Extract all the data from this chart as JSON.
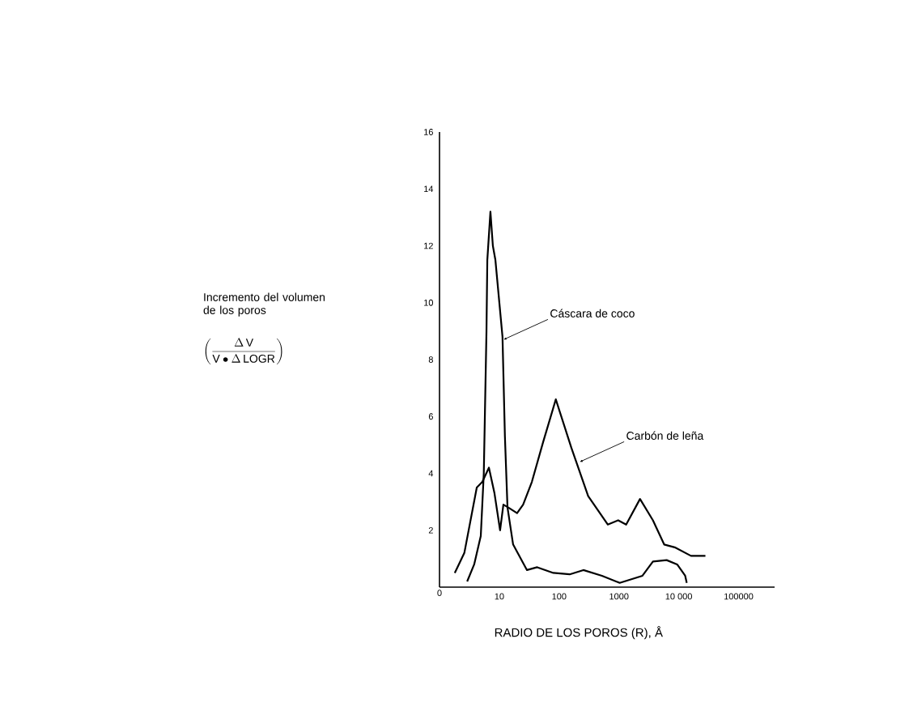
{
  "chart_data": {
    "type": "line",
    "xlabel": "RADIO DE LOS POROS (R), Å",
    "log": "x",
    "xlim": [
      1,
      400000
    ],
    "ylim": [
      0,
      16
    ],
    "xticks": [
      10,
      100,
      1000,
      {
        "value": 10000,
        "label": "10 000"
      },
      100000
    ],
    "yticks": [
      2,
      4,
      6,
      8,
      10,
      12,
      14,
      16
    ],
    "series": [
      {
        "color": "#000000",
        "x": [
          2.9,
          3.8,
          4.9,
          5.5,
          6.1,
          6.3,
          7.1,
          7.8,
          8.6,
          11.3,
          12.4,
          13.7,
          17,
          29,
          43,
          80,
          150,
          254,
          520,
          1030,
          2470,
          3700,
          6270,
          9400,
          12800,
          13600
        ],
        "values": [
          0.2,
          0.8,
          1.8,
          4,
          9,
          11.5,
          13.2,
          12,
          11.5,
          8.8,
          5.3,
          2.8,
          1.5,
          0.6,
          0.7,
          0.5,
          0.45,
          0.6,
          0.4,
          0.15,
          0.4,
          0.9,
          0.95,
          0.8,
          0.4,
          0.15
        ]
      },
      {
        "color": "#000000",
        "x": [
          1.8,
          2.6,
          4.2,
          5.2,
          6.7,
          8.3,
          10.3,
          11.7,
          14.1,
          19.8,
          25,
          35,
          54,
          88,
          160,
          306,
          650,
          970,
          1320,
          2250,
          3700,
          5700,
          8550,
          16000,
          27900
        ],
        "values": [
          0.5,
          1.2,
          3.5,
          3.7,
          4.2,
          3.3,
          2.0,
          2.9,
          2.8,
          2.6,
          2.9,
          3.7,
          5.1,
          6.6,
          4.9,
          3.2,
          2.2,
          2.35,
          2.2,
          3.1,
          2.35,
          1.5,
          1.4,
          1.1,
          1.1
        ]
      }
    ],
    "annotations": [
      "Incremento del volumen de los poros",
      "\\left(\\frac{\\Delta\\,\\mathrm{V}}{\\mathrm{V}\\bullet\\Delta\\,\\mathrm{LOGR}}\\right)",
      "0",
      {
        "text": "Cáscara de coco",
        "x": 11.7,
        "y": 8.7
      },
      {
        "text": "Carbón de leña",
        "x": 220,
        "y": 4.4
      }
    ]
  }
}
